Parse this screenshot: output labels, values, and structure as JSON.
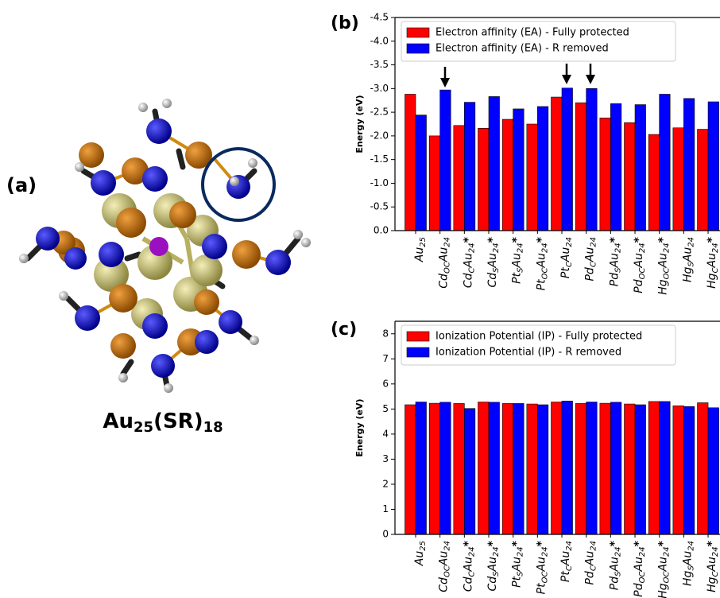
{
  "panel_a": {
    "label": "(a)",
    "caption": [
      {
        "text": "Au",
        "sub": "25"
      },
      {
        "text": "(SR)",
        "sub": "18"
      }
    ]
  },
  "chart_data": [
    {
      "type": "bar",
      "panel_label": "(b)",
      "y_label": "Energy (eV)",
      "categories": [
        [
          {
            "text": "Au"
          },
          {
            "sub": "25"
          }
        ],
        [
          {
            "text": "Cd"
          },
          {
            "sub": "OC"
          },
          {
            "text": "Au"
          },
          {
            "sub": "24"
          }
        ],
        [
          {
            "text": "Cd"
          },
          {
            "sub": "C"
          },
          {
            "text": "Au"
          },
          {
            "sub": "24"
          },
          {
            "star": "*"
          }
        ],
        [
          {
            "text": "Cd"
          },
          {
            "sub": "S"
          },
          {
            "text": "Au"
          },
          {
            "sub": "24"
          },
          {
            "star": "*"
          }
        ],
        [
          {
            "text": "Pt"
          },
          {
            "sub": "S"
          },
          {
            "text": "Au"
          },
          {
            "sub": "24"
          },
          {
            "star": "*"
          }
        ],
        [
          {
            "text": "Pt"
          },
          {
            "sub": "OC"
          },
          {
            "text": "Au"
          },
          {
            "sub": "24"
          },
          {
            "star": "*"
          }
        ],
        [
          {
            "text": "Pt"
          },
          {
            "sub": "C"
          },
          {
            "text": "Au"
          },
          {
            "sub": "24"
          }
        ],
        [
          {
            "text": "Pd"
          },
          {
            "sub": "C"
          },
          {
            "text": "Au"
          },
          {
            "sub": "24"
          }
        ],
        [
          {
            "text": "Pd"
          },
          {
            "sub": "S"
          },
          {
            "text": "Au"
          },
          {
            "sub": "24"
          },
          {
            "star": "*"
          }
        ],
        [
          {
            "text": "Pd"
          },
          {
            "sub": "OC"
          },
          {
            "text": "Au"
          },
          {
            "sub": "24"
          },
          {
            "star": "*"
          }
        ],
        [
          {
            "text": "Hg"
          },
          {
            "sub": "OC"
          },
          {
            "text": "Au"
          },
          {
            "sub": "24"
          },
          {
            "star": "*"
          }
        ],
        [
          {
            "text": "Hg"
          },
          {
            "sub": "S"
          },
          {
            "text": "Au"
          },
          {
            "sub": "24"
          }
        ],
        [
          {
            "text": "Hg"
          },
          {
            "sub": "C"
          },
          {
            "text": "Au"
          },
          {
            "sub": "24"
          },
          {
            "star": "*"
          }
        ]
      ],
      "series": [
        {
          "name": "Electron affinity (EA) - Fully protected",
          "color": "#ff0000",
          "values": [
            -2.88,
            -2.0,
            -2.22,
            -2.16,
            -2.35,
            -2.25,
            -2.82,
            -2.7,
            -2.38,
            -2.28,
            -2.03,
            -2.17,
            -2.14
          ]
        },
        {
          "name": "Electron affinity (EA) - R removed",
          "color": "#0000ff",
          "values": [
            -2.44,
            -2.97,
            -2.71,
            -2.83,
            -2.57,
            -2.62,
            -3.01,
            -3.0,
            -2.68,
            -2.66,
            -2.88,
            -2.79,
            -2.72
          ]
        }
      ],
      "ylim": [
        0,
        -4.5
      ],
      "yticks": [
        {
          "value": 0,
          "label": "0.0"
        },
        -0.5,
        {
          "value": -1,
          "label": "-1.0"
        },
        -1.5,
        {
          "value": -2,
          "label": "-2.0"
        },
        -2.5,
        {
          "value": -3,
          "label": "-3.0"
        },
        -3.5,
        {
          "value": -4,
          "label": "-4.0"
        },
        -4.5
      ]
    },
    {
      "type": "bar",
      "panel_label": "(c)",
      "y_label": "Energy (eV)",
      "categories": [
        [
          {
            "text": "Au"
          },
          {
            "sub": "25"
          }
        ],
        [
          {
            "text": "Cd"
          },
          {
            "sub": "OC"
          },
          {
            "text": "Au"
          },
          {
            "sub": "24"
          }
        ],
        [
          {
            "text": "Cd"
          },
          {
            "sub": "C"
          },
          {
            "text": "Au"
          },
          {
            "sub": "24"
          },
          {
            "star": "*"
          }
        ],
        [
          {
            "text": "Cd"
          },
          {
            "sub": "S"
          },
          {
            "text": "Au"
          },
          {
            "sub": "24"
          },
          {
            "star": "*"
          }
        ],
        [
          {
            "text": "Pt"
          },
          {
            "sub": "S"
          },
          {
            "text": "Au"
          },
          {
            "sub": "24"
          },
          {
            "star": "*"
          }
        ],
        [
          {
            "text": "Pt"
          },
          {
            "sub": "OC"
          },
          {
            "text": "Au"
          },
          {
            "sub": "24"
          },
          {
            "star": "*"
          }
        ],
        [
          {
            "text": "Pt"
          },
          {
            "sub": "C"
          },
          {
            "text": "Au"
          },
          {
            "sub": "24"
          }
        ],
        [
          {
            "text": "Pd"
          },
          {
            "sub": "C"
          },
          {
            "text": "Au"
          },
          {
            "sub": "24"
          }
        ],
        [
          {
            "text": "Pd"
          },
          {
            "sub": "S"
          },
          {
            "text": "Au"
          },
          {
            "sub": "24"
          },
          {
            "star": "*"
          }
        ],
        [
          {
            "text": "Pd"
          },
          {
            "sub": "OC"
          },
          {
            "text": "Au"
          },
          {
            "sub": "24"
          },
          {
            "star": "*"
          }
        ],
        [
          {
            "text": "Hg"
          },
          {
            "sub": "OC"
          },
          {
            "text": "Au"
          },
          {
            "sub": "24"
          },
          {
            "star": "*"
          }
        ],
        [
          {
            "text": "Hg"
          },
          {
            "sub": "S"
          },
          {
            "text": "Au"
          },
          {
            "sub": "24"
          }
        ],
        [
          {
            "text": "Hg"
          },
          {
            "sub": "C"
          },
          {
            "text": "Au"
          },
          {
            "sub": "24"
          },
          {
            "star": "*"
          }
        ]
      ],
      "series": [
        {
          "name": "Ionization Potential (IP) - Fully protected",
          "color": "#ff0000",
          "values": [
            5.17,
            5.23,
            5.22,
            5.28,
            5.22,
            5.2,
            5.28,
            5.22,
            5.23,
            5.2,
            5.3,
            5.13,
            5.25
          ]
        },
        {
          "name": "Ionization Potential (IP) - R removed",
          "color": "#0000ff",
          "values": [
            5.28,
            5.27,
            5.02,
            5.27,
            5.22,
            5.17,
            5.32,
            5.28,
            5.27,
            5.17,
            5.3,
            5.1,
            5.05
          ]
        }
      ],
      "ylim": [
        0,
        8.5
      ],
      "yticks": [
        0,
        1,
        2,
        3,
        4,
        5,
        6,
        7,
        8
      ]
    }
  ]
}
